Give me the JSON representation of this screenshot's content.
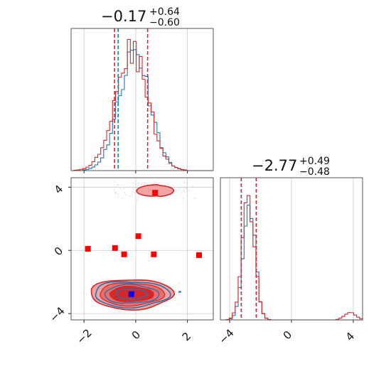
{
  "colors": {
    "blue": "#1f77b4",
    "red": "#d62728",
    "marker_red": "#ff0000",
    "marker_blue": "#0000ff",
    "light_red": "#f4a3a3",
    "grid": "#c8c8c8"
  },
  "chart_data": [
    {
      "type": "histogram",
      "panel": "x-marginal",
      "title": {
        "value": "−0.17",
        "plus": "+0.64",
        "minus": "−0.60"
      },
      "xlim": [
        -2.5,
        3.0
      ],
      "ylim": [
        0,
        1.12
      ],
      "grid": true,
      "series": [
        {
          "color": "blue",
          "center": -0.05,
          "sigma": 0.6,
          "quantile_lines": [
            -0.68
          ]
        },
        {
          "color": "red",
          "center": -0.17,
          "sigma": 0.64,
          "quantile_lines": [
            -0.82,
            0.46
          ]
        }
      ]
    },
    {
      "type": "scatter",
      "panel": "2d-joint",
      "xlim": [
        -2.5,
        3.0
      ],
      "ylim": [
        -4.4,
        4.6
      ],
      "xticks": [
        "−2",
        "0",
        "2"
      ],
      "yticks": [
        "−4",
        "0",
        "4"
      ],
      "grid": true,
      "red_markers": [
        {
          "x": -1.85,
          "y": 0.1
        },
        {
          "x": -0.8,
          "y": 0.15
        },
        {
          "x": -0.45,
          "y": -0.25
        },
        {
          "x": 0.1,
          "y": 0.9
        },
        {
          "x": 0.7,
          "y": -0.25
        },
        {
          "x": 2.45,
          "y": -0.3
        },
        {
          "x": 0.75,
          "y": 3.65
        }
      ],
      "blue_markers": [
        {
          "x": -0.17,
          "y": -2.77
        }
      ],
      "contour_center": {
        "x": -0.17,
        "y": -2.77
      },
      "upper_mode": {
        "x": 0.75,
        "y": 3.8
      }
    },
    {
      "type": "histogram",
      "panel": "y-marginal",
      "title": {
        "value": "−2.77",
        "plus": "+0.49",
        "minus": "−0.48"
      },
      "xlim": [
        -4.6,
        4.6
      ],
      "ylim": [
        0,
        1.12
      ],
      "xticks": [
        "−4",
        "0",
        "4"
      ],
      "grid": true,
      "series": [
        {
          "color": "blue",
          "center": -2.75,
          "sigma": 0.38,
          "quantile_lines": [
            -3.25,
            -2.28
          ]
        },
        {
          "color": "red",
          "center": -2.78,
          "sigma": 0.4,
          "quantile_lines": [
            -3.25,
            -2.28
          ]
        }
      ]
    }
  ]
}
